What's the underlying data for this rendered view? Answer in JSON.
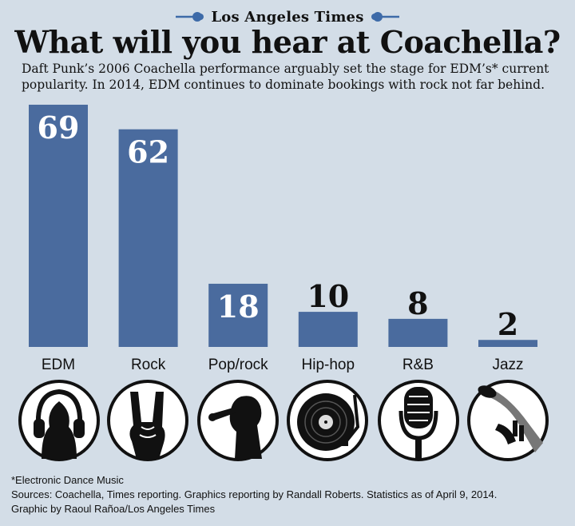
{
  "masthead": {
    "brand": "Los Angeles Times"
  },
  "title": "What will you hear at Coachella?",
  "subtitle": "Daft Punk’s 2006 Coachella performance arguably set the stage for EDM’s* current popularity. In 2014, EDM continues to dominate bookings with rock not far behind.",
  "colors": {
    "bar": "#4a6b9e",
    "background": "#d3dde7",
    "label_inside": "#ffffff",
    "label_outside": "#111111"
  },
  "chart_data": {
    "type": "bar",
    "title": "What will you hear at Coachella?",
    "categories": [
      "EDM",
      "Rock",
      "Pop/rock",
      "Hip-hop",
      "R&B",
      "Jazz"
    ],
    "values": [
      69,
      62,
      18,
      10,
      8,
      2
    ],
    "ylim": [
      0,
      69
    ],
    "grid": false,
    "legend": "none"
  },
  "icons": [
    "headphones-icon",
    "rock-hand-icon",
    "singer-icon",
    "turntable-icon",
    "microphone-icon",
    "trumpet-icon"
  ],
  "footer": {
    "note": "*Electronic Dance Music",
    "sources": "Sources: Coachella, Times reporting. Graphics reporting by Randall Roberts. Statistics as of April 9, 2014.",
    "credit": "Graphic by Raoul Rañoa/Los Angeles Times"
  }
}
